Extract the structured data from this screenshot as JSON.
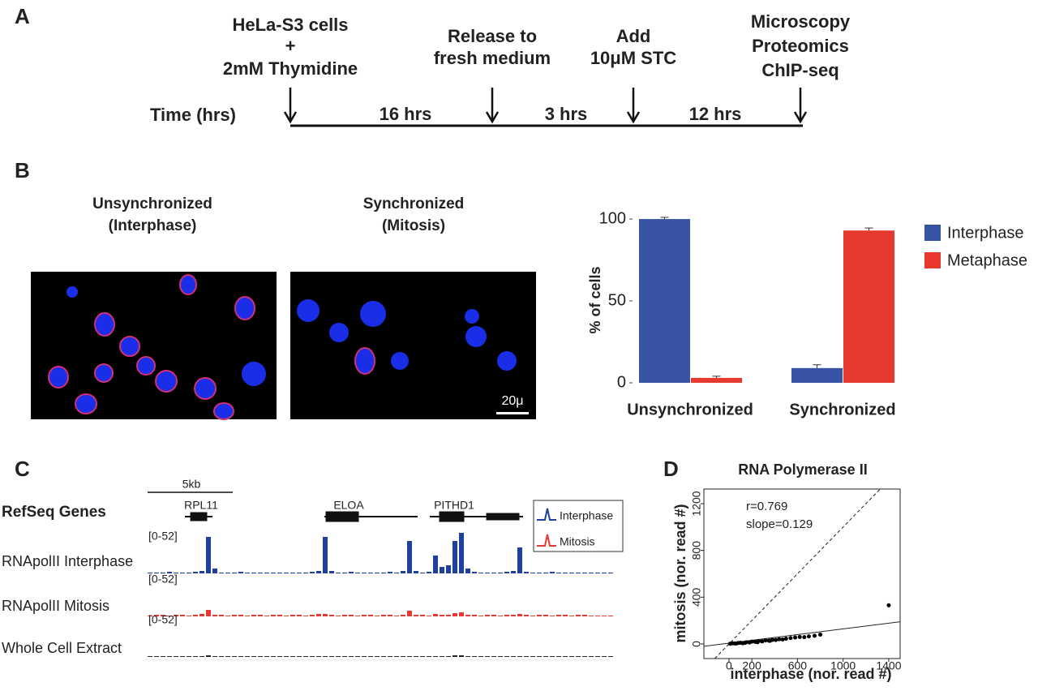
{
  "panel_labels": [
    "A",
    "B",
    "C",
    "D"
  ],
  "timeline": {
    "axis_label": "Time (hrs)",
    "steps": [
      [
        "HeLa-S3 cells",
        "+",
        "2mM Thymidine"
      ],
      [
        "Release to",
        "fresh medium"
      ],
      [
        "Add",
        "10μM STC"
      ],
      [
        "Microscopy",
        "Proteomics",
        "ChIP-seq"
      ]
    ],
    "intervals": [
      "16 hrs",
      "3 hrs",
      "12 hrs"
    ]
  },
  "images": [
    {
      "title": [
        "Unsynchronized",
        "(Interphase)"
      ]
    },
    {
      "title": [
        "Synchronized",
        "(Mitosis)"
      ],
      "scale_bar": "20μ"
    }
  ],
  "browser": {
    "scale": "5kb",
    "genes_label": "RefSeq Genes",
    "genes": [
      "RPL11",
      "ELOA",
      "PITHD1"
    ],
    "legend": [
      "Interphase",
      "Mitosis"
    ],
    "tracks": [
      {
        "name": "RNApolII Interphase",
        "range": "[0-52]",
        "ylim": [
          0,
          52
        ],
        "color": "#1f3f9f",
        "values": [
          1,
          1,
          1,
          2,
          1,
          1,
          1,
          2,
          3,
          45,
          6,
          1,
          1,
          1,
          2,
          1,
          1,
          1,
          1,
          1,
          1,
          1,
          1,
          1,
          1,
          2,
          3,
          45,
          3,
          1,
          1,
          2,
          1,
          1,
          1,
          1,
          1,
          2,
          1,
          3,
          40,
          3,
          1,
          2,
          22,
          8,
          10,
          40,
          50,
          6,
          2,
          1,
          1,
          1,
          1,
          2,
          3,
          32,
          2,
          1,
          1,
          1,
          2,
          1,
          1,
          1,
          1,
          1,
          1,
          1,
          1,
          1
        ]
      },
      {
        "name": "RNApolII Mitosis",
        "range": "[0-52]",
        "ylim": [
          0,
          52
        ],
        "color": "#e53935",
        "values": [
          1,
          2,
          2,
          1,
          2,
          2,
          1,
          2,
          3,
          8,
          2,
          2,
          1,
          2,
          2,
          1,
          2,
          2,
          1,
          2,
          2,
          1,
          2,
          2,
          1,
          2,
          3,
          3,
          2,
          1,
          2,
          2,
          1,
          2,
          2,
          1,
          2,
          2,
          1,
          2,
          7,
          2,
          2,
          1,
          3,
          2,
          2,
          4,
          5,
          2,
          2,
          1,
          2,
          2,
          1,
          2,
          2,
          3,
          2,
          1,
          2,
          2,
          1,
          2,
          2,
          1,
          2,
          2,
          1,
          1,
          1,
          1
        ]
      },
      {
        "name": "Whole Cell Extract",
        "range": "[0-52]",
        "ylim": [
          0,
          52
        ],
        "color": "#222222",
        "values": [
          1,
          1,
          1,
          1,
          1,
          1,
          1,
          1,
          1,
          2,
          1,
          1,
          1,
          1,
          1,
          1,
          1,
          1,
          1,
          1,
          1,
          1,
          1,
          1,
          1,
          1,
          1,
          1,
          1,
          1,
          1,
          1,
          1,
          1,
          1,
          1,
          1,
          1,
          1,
          1,
          1,
          1,
          1,
          1,
          1,
          1,
          1,
          2,
          2,
          1,
          1,
          1,
          1,
          1,
          1,
          1,
          1,
          1,
          1,
          1,
          1,
          1,
          1,
          1,
          1,
          1,
          1,
          1,
          1,
          1,
          1,
          1
        ]
      }
    ]
  },
  "chart_data": [
    {
      "type": "bar",
      "y_label": "% of cells",
      "categories": [
        "Unsynchronized",
        "Synchronized"
      ],
      "ylim": [
        0,
        104
      ],
      "yticks": [
        0,
        50,
        100
      ],
      "legend": "right",
      "series": [
        {
          "name": "Interphase",
          "color": "#3953a4",
          "values": [
            100,
            9
          ],
          "errors": [
            1,
            2
          ]
        },
        {
          "name": "Metaphase",
          "color": "#e8392f",
          "values": [
            3,
            93
          ],
          "errors": [
            1,
            1.5
          ]
        }
      ]
    },
    {
      "type": "scatter",
      "title": "RNA Polymerase II",
      "x_label": "interphase (nor. read #)",
      "y_label": "mitosis (nor. read #)",
      "annotations": [
        "r=0.769",
        "slope=0.129"
      ],
      "xlim": [
        -220,
        1500
      ],
      "ylim": [
        -125,
        1325
      ],
      "xticks": [
        0,
        200,
        600,
        1000,
        1400
      ],
      "yticks": [
        0,
        400,
        800,
        1200
      ],
      "fit": {
        "x": [
          -220,
          1500
        ],
        "y": [
          -20,
          190
        ]
      },
      "x": [
        10,
        30,
        50,
        80,
        100,
        120,
        150,
        180,
        200,
        230,
        260,
        290,
        320,
        350,
        380,
        410,
        440,
        470,
        500,
        540,
        580,
        620,
        660,
        700,
        750,
        800,
        60,
        140,
        250,
        360,
        1400
      ],
      "y": [
        2,
        5,
        4,
        8,
        10,
        6,
        14,
        12,
        20,
        18,
        25,
        22,
        30,
        28,
        35,
        34,
        40,
        38,
        45,
        50,
        55,
        60,
        58,
        65,
        70,
        80,
        3,
        9,
        15,
        27,
        330
      ]
    }
  ]
}
